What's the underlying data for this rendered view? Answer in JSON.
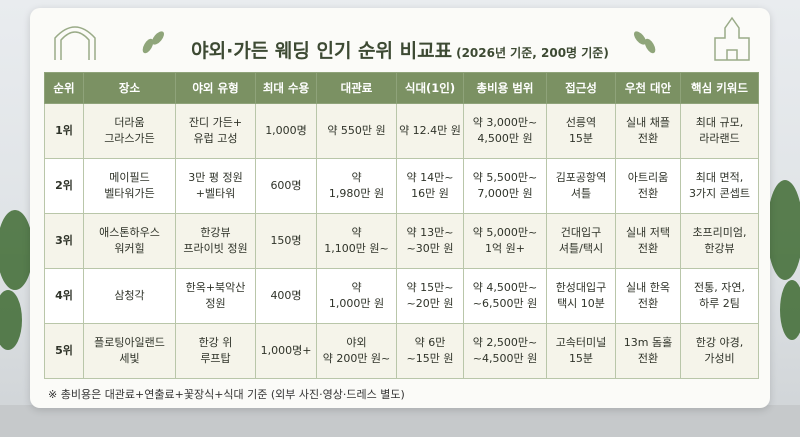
{
  "header": {
    "title": "야외·가든 웨딩 인기 순위 비교표",
    "subtitle": "(2026년 기준, 200명 기준)"
  },
  "table": {
    "columns": [
      "순위",
      "장소",
      "야외 유형",
      "최대 수용",
      "대관료",
      "식대(1인)",
      "총비용 범위",
      "접근성",
      "우천 대안",
      "핵심 키워드"
    ],
    "rows": [
      [
        "1위",
        "더라움\n그라스가든",
        "잔디 가든+\n유럽 고성",
        "1,000명",
        "약 550만 원",
        "약 12.4만 원",
        "약 3,000만~\n4,500만 원",
        "선릉역\n15분",
        "실내 채플\n전환",
        "최대 규모,\n라라랜드"
      ],
      [
        "2위",
        "메이필드\n벨타워가든",
        "3만 평 정원\n+벨타워",
        "600명",
        "약\n1,980만 원",
        "약 14만~\n16만 원",
        "약 5,500만~\n7,000만 원",
        "김포공항역\n셔틀",
        "아트리움\n전환",
        "최대 면적,\n3가지 콘셉트"
      ],
      [
        "3위",
        "애스톤하우스\n워커힐",
        "한강뷰\n프라이빗 정원",
        "150명",
        "약\n1,100만 원~",
        "약 13만~\n~30만 원",
        "약 5,000만~\n1억 원+",
        "건대입구\n셔틀/택시",
        "실내 저택\n전환",
        "초프리미엄,\n한강뷰"
      ],
      [
        "4위",
        "삼청각",
        "한옥+북악산\n정원",
        "400명",
        "약\n1,000만 원",
        "약 15만~\n~20만 원",
        "약 4,500만~\n~6,500만 원",
        "한성대입구\n택시 10분",
        "실내 한옥\n전환",
        "전통, 자연,\n하루 2팀"
      ],
      [
        "5위",
        "플로팅아일랜드\n세빛",
        "한강 위\n루프탑",
        "1,000명+",
        "야외\n약 200만 원~",
        "약 6만\n~15만 원",
        "약 2,500만~\n~4,500만 원",
        "고속터미널\n15분",
        "13m 돔홀\n전환",
        "한강 야경,\n가성비"
      ]
    ]
  },
  "footnote": "※ 총비용은 대관료+연출료+꽃장식+식대 기준 (외부 사진·영상·드레스 별도)"
}
